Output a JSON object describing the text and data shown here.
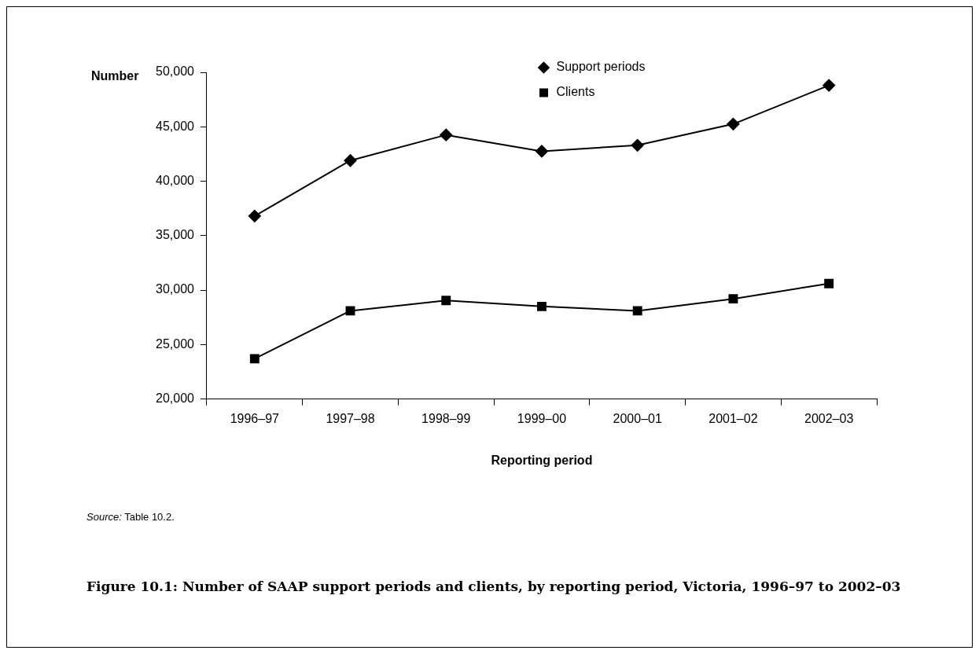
{
  "chart_data": {
    "type": "line",
    "title": "Figure 10.1:  Number of SAAP support periods and clients, by reporting period, Victoria, 1996–97 to 2002–03",
    "xlabel": "Reporting period",
    "ylabel": "Number",
    "annotations": [
      "Source: Table 10.2."
    ],
    "categories": [
      "1996–97",
      "1997–98",
      "1998–99",
      "1999–00",
      "2000–01",
      "2001–02",
      "2002–03"
    ],
    "series": [
      {
        "name": "Support periods",
        "color": "#000000",
        "marker": "diamond",
        "values": [
          36800,
          41900,
          44250,
          42750,
          43300,
          45250,
          48800
        ]
      },
      {
        "name": "Clients",
        "color": "#000000",
        "marker": "square",
        "values": [
          23700,
          28100,
          29050,
          28500,
          28100,
          29200,
          30600
        ]
      }
    ],
    "ylim": [
      20000,
      50000
    ],
    "yticks": [
      {
        "value": 20000,
        "label": "20,000"
      },
      {
        "value": 25000,
        "label": "25,000"
      },
      {
        "value": 30000,
        "label": "30,000"
      },
      {
        "value": 35000,
        "label": "35,000"
      },
      {
        "value": 40000,
        "label": "40,000"
      },
      {
        "value": 45000,
        "label": "45,000"
      },
      {
        "value": 50000,
        "label": "50,000"
      }
    ],
    "grid": false,
    "legend": "center",
    "line_style": "solid"
  }
}
